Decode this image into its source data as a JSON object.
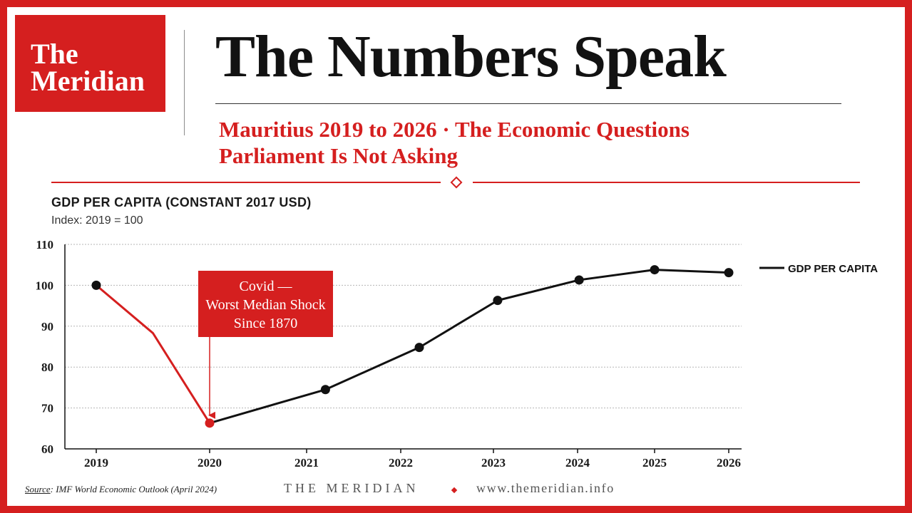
{
  "brand": {
    "logo_line1": "The",
    "logo_line2": "Meridian",
    "accent_color": "#d51f1f"
  },
  "header": {
    "headline": "The Numbers Speak",
    "subtitle_line1": "Mauritius 2019 to 2026 · The Economic Questions",
    "subtitle_line2": "Parliament Is Not Asking"
  },
  "chart_data": {
    "type": "line",
    "title": "GDP PER CAPITA (CONSTANT 2017 USD)",
    "subtitle": "Index: 2019 = 100",
    "x": [
      "2019",
      "2020",
      "2021",
      "2022",
      "2023",
      "2024",
      "2025",
      "2026"
    ],
    "ylim": [
      60,
      110
    ],
    "yticks": [
      60,
      70,
      80,
      90,
      100,
      110
    ],
    "grid": true,
    "legend_position": "right",
    "series": [
      {
        "name": "GDP PER CAPITA",
        "color": "#111111",
        "points": [
          {
            "x": 2019,
            "y": 100,
            "marker": true
          },
          {
            "x": 2019.5,
            "y": 88.3,
            "marker": false
          },
          {
            "x": 2020,
            "y": 66.3,
            "marker": true,
            "highlight": true
          },
          {
            "x": 2021.2,
            "y": 74.5,
            "marker": true
          },
          {
            "x": 2022.2,
            "y": 84.8,
            "marker": true
          },
          {
            "x": 2023.05,
            "y": 96.3,
            "marker": true
          },
          {
            "x": 2024.02,
            "y": 101.3,
            "marker": true
          },
          {
            "x": 2025,
            "y": 103.8,
            "marker": true
          },
          {
            "x": 2026,
            "y": 103.1,
            "marker": true
          }
        ],
        "highlight_range": [
          2019,
          2020
        ],
        "highlight_color": "#d51f1f"
      }
    ],
    "annotation": {
      "line1": "Covid —",
      "line2": "Worst Median Shock",
      "line3": "Since 1870",
      "target_x": 2020,
      "target_y": 66.3
    }
  },
  "footer": {
    "source_label": "Source",
    "source_text": ": IMF World Economic Outlook (April 2024)",
    "brand": "THE MERIDIAN",
    "url": "www.themeridian.info"
  }
}
